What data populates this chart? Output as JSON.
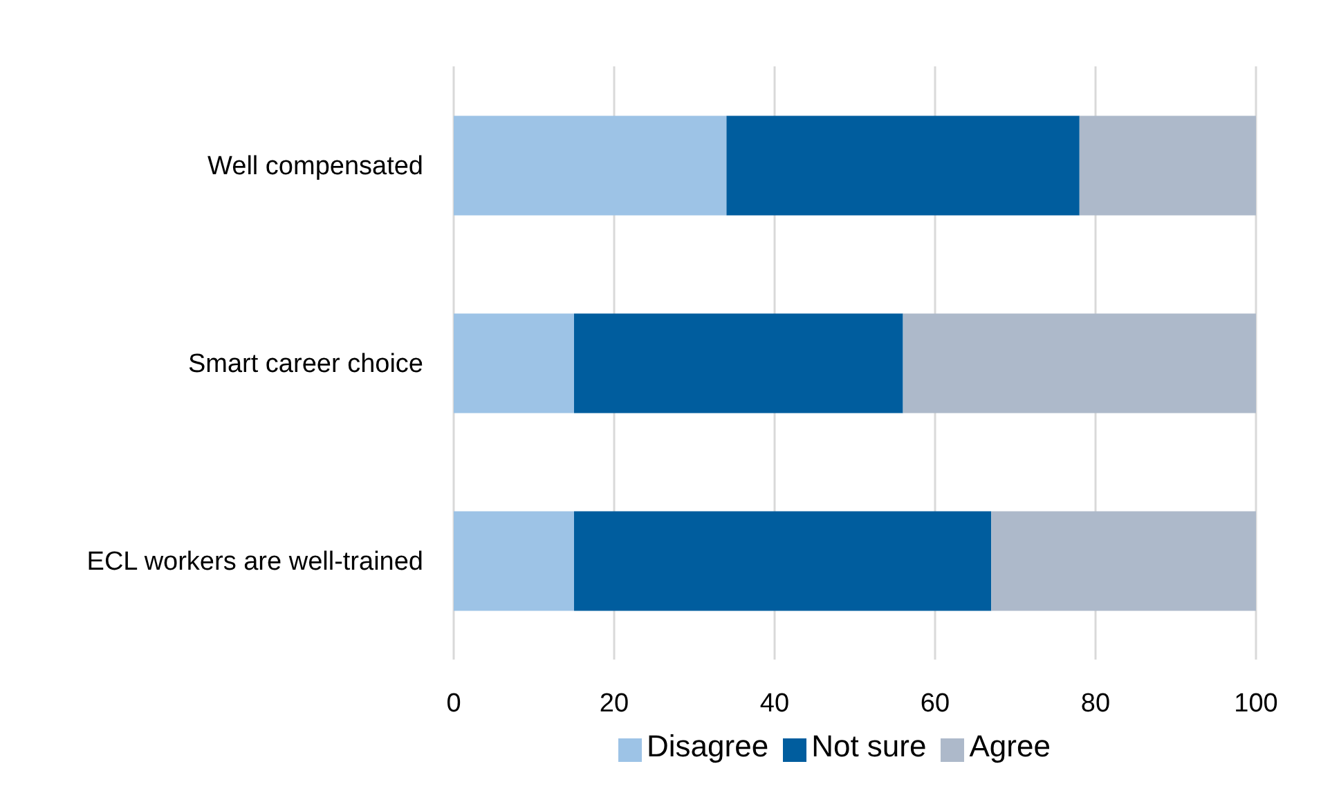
{
  "chart_data": {
    "type": "bar",
    "orientation": "horizontal",
    "stacked": true,
    "categories": [
      "Well compensated",
      "Smart career choice",
      "ECL workers are well-trained"
    ],
    "series": [
      {
        "name": "Disagree",
        "color": "#9dc3e6",
        "values": [
          34,
          15,
          15
        ]
      },
      {
        "name": "Not sure",
        "color": "#005d9e",
        "values": [
          44,
          41,
          52
        ]
      },
      {
        "name": "Agree",
        "color": "#adb9ca",
        "values": [
          22,
          44,
          33
        ]
      }
    ],
    "xlim": [
      0,
      100
    ],
    "xticks": [
      0,
      20,
      40,
      60,
      80,
      100
    ],
    "grid": "x",
    "legend": "bottom"
  }
}
